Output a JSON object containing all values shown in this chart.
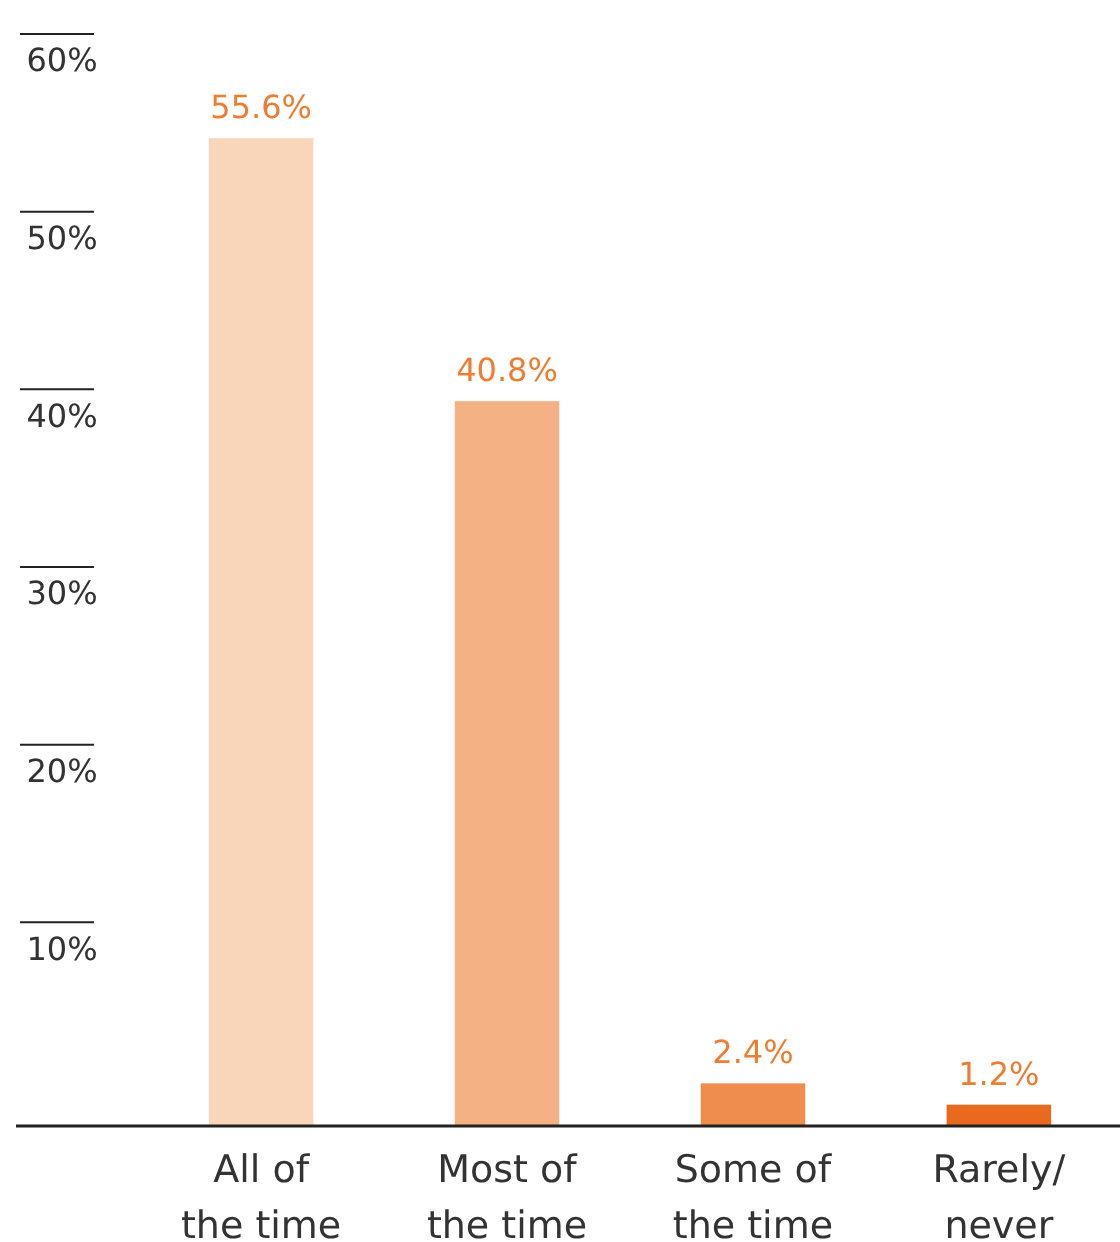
{
  "chart_data": {
    "type": "bar",
    "categories": [
      "All of\nthe time",
      "Most of\nthe time",
      "Some of\nthe time",
      "Rarely/\nnever"
    ],
    "values": [
      55.6,
      40.8,
      2.4,
      1.2
    ],
    "colors": [
      "#f9d5b9",
      "#f3b184",
      "#ef8d4e",
      "#e9691f"
    ],
    "value_labels": [
      "55.6%",
      "40.8%",
      "2.4%",
      "1.2%"
    ],
    "ylim": [
      0,
      60
    ],
    "yticks": [
      {
        "value": 10,
        "label": "10%"
      },
      {
        "value": 20,
        "label": "20%"
      },
      {
        "value": 30,
        "label": "30%"
      },
      {
        "value": 40,
        "label": "40%"
      },
      {
        "value": 50,
        "label": "50%"
      },
      {
        "value": 60,
        "label": "60%"
      }
    ],
    "grid": false
  }
}
